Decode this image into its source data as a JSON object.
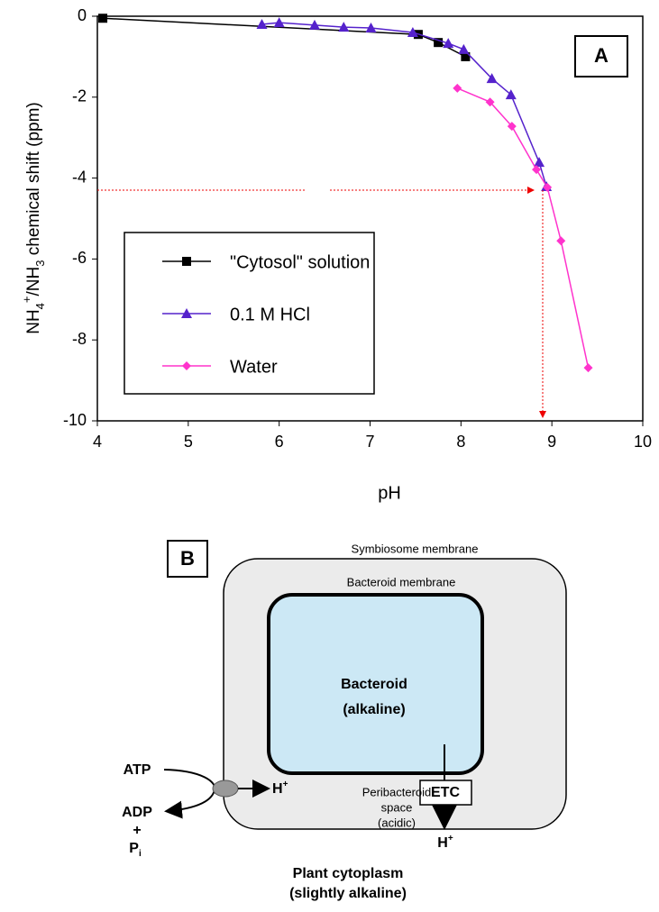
{
  "chart_data": {
    "type": "line",
    "x_label": "pH",
    "y_label_parts": [
      "NH",
      "4",
      "+",
      "/NH",
      "3",
      " chemical shift (ppm)"
    ],
    "panel_label": "A",
    "xlim": [
      4,
      10
    ],
    "xticks": [
      4,
      5,
      6,
      7,
      8,
      9,
      10
    ],
    "ylim": [
      -10,
      0
    ],
    "yticks": [
      0,
      -2,
      -4,
      -6,
      -8,
      -10
    ],
    "series": [
      {
        "name": "\"Cytosol\" solution",
        "color": "#000000",
        "marker": "square",
        "x": [
          4.06,
          7.53,
          7.75,
          8.05
        ],
        "values": [
          -0.05,
          -0.45,
          -0.65,
          -1.0
        ]
      },
      {
        "name": "0.1 M HCl",
        "color": "#5522cc",
        "marker": "triangle",
        "x": [
          5.81,
          6.0,
          6.39,
          6.71,
          7.01,
          7.47,
          7.86,
          8.03,
          8.34,
          8.55,
          8.86,
          8.94
        ],
        "values": [
          -0.2,
          -0.16,
          -0.22,
          -0.27,
          -0.29,
          -0.4,
          -0.67,
          -0.82,
          -1.54,
          -1.94,
          -3.61,
          -4.21
        ]
      },
      {
        "name": "Water",
        "color": "#ff33cc",
        "marker": "diamond",
        "x": [
          7.96,
          8.32,
          8.56,
          8.83,
          8.95,
          9.1,
          9.4
        ],
        "values": [
          -1.78,
          -2.12,
          -2.72,
          -3.79,
          -4.23,
          -5.55,
          -8.69
        ]
      }
    ]
  },
  "diagram": {
    "panel_label": "B",
    "symbiosome": "Symbiosome membrane",
    "bacteroid_membrane": "Bacteroid membrane",
    "bacteroid": [
      "Bacteroid",
      "(alkaline)"
    ],
    "peribacteroid": [
      "Peribacteroid",
      "space",
      "(acidic)"
    ],
    "etc": "ETC",
    "proton": [
      "H",
      "+"
    ],
    "atp": "ATP",
    "adp": "ADP",
    "plus": "+",
    "pi": [
      "P",
      "i"
    ],
    "cytoplasm": [
      "Plant cytoplasm",
      "(slightly alkaline)"
    ]
  }
}
